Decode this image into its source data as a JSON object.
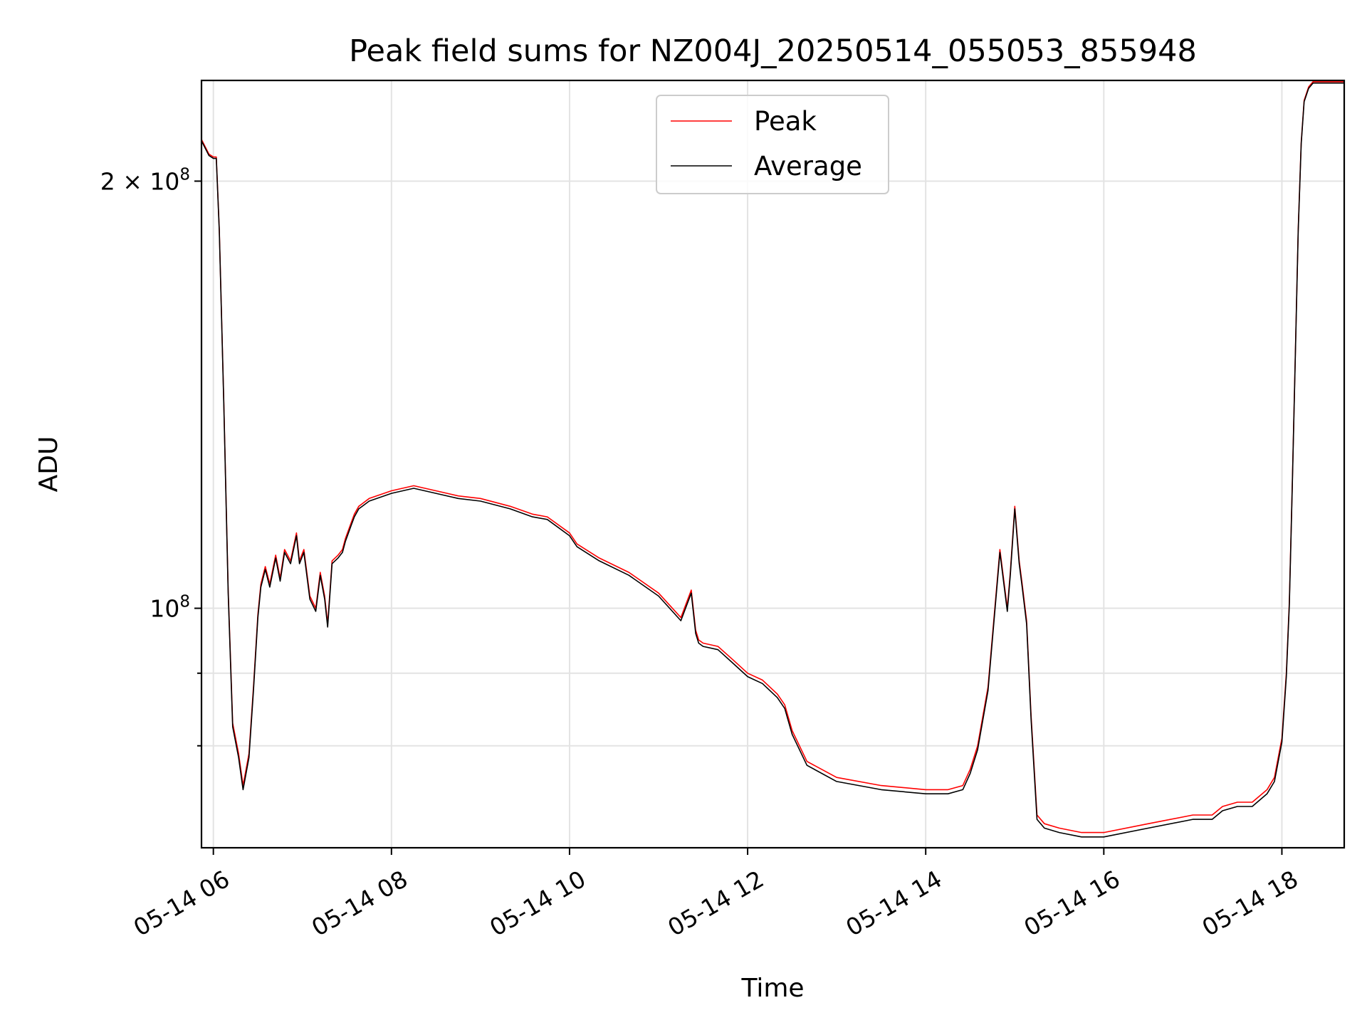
{
  "chart_data": {
    "type": "line",
    "title": "Peak field sums for NZ004J_20250514_055053_855948",
    "xlabel": "Time",
    "ylabel": "ADU",
    "y_scale": "log",
    "xlim": [
      "2025-05-14 05:52",
      "2025-05-14 18:42"
    ],
    "ylim": [
      67800000,
      235500000
    ],
    "grid": true,
    "legend_position": "upper center",
    "x_ticks": [
      {
        "value": "2025-05-14 06:00",
        "label": "05-14 06"
      },
      {
        "value": "2025-05-14 08:00",
        "label": "05-14 08"
      },
      {
        "value": "2025-05-14 10:00",
        "label": "05-14 10"
      },
      {
        "value": "2025-05-14 12:00",
        "label": "05-14 12"
      },
      {
        "value": "2025-05-14 14:00",
        "label": "05-14 14"
      },
      {
        "value": "2025-05-14 16:00",
        "label": "05-14 16"
      },
      {
        "value": "2025-05-14 18:00",
        "label": "05-14 18"
      }
    ],
    "y_ticks_major": [
      {
        "value": 100000000,
        "base": "10",
        "exp": "8",
        "prefix": ""
      },
      {
        "value": 200000000,
        "base": "10",
        "exp": "8",
        "prefix": "2 × "
      }
    ],
    "y_ticks_minor": [
      80000000,
      90000000
    ],
    "series": [
      {
        "name": "Peak",
        "color": "#ff0000",
        "x": [
          "2025-05-14 05:52",
          "2025-05-14 05:57",
          "2025-05-14 06:00",
          "2025-05-14 06:02",
          "2025-05-14 06:04",
          "2025-05-14 06:07",
          "2025-05-14 06:10",
          "2025-05-14 06:13",
          "2025-05-14 06:17",
          "2025-05-14 06:20",
          "2025-05-14 06:24",
          "2025-05-14 06:27",
          "2025-05-14 06:30",
          "2025-05-14 06:32",
          "2025-05-14 06:35",
          "2025-05-14 06:38",
          "2025-05-14 06:42",
          "2025-05-14 06:45",
          "2025-05-14 06:48",
          "2025-05-14 06:52",
          "2025-05-14 06:56",
          "2025-05-14 06:58",
          "2025-05-14 07:01",
          "2025-05-14 07:05",
          "2025-05-14 07:09",
          "2025-05-14 07:12",
          "2025-05-14 07:15",
          "2025-05-14 07:17",
          "2025-05-14 07:20",
          "2025-05-14 07:24",
          "2025-05-14 07:27",
          "2025-05-14 07:29",
          "2025-05-14 07:31",
          "2025-05-14 07:33",
          "2025-05-14 07:35",
          "2025-05-14 07:38",
          "2025-05-14 07:45",
          "2025-05-14 08:00",
          "2025-05-14 08:15",
          "2025-05-14 08:30",
          "2025-05-14 08:45",
          "2025-05-14 09:00",
          "2025-05-14 09:20",
          "2025-05-14 09:35",
          "2025-05-14 09:45",
          "2025-05-14 10:00",
          "2025-05-14 10:05",
          "2025-05-14 10:20",
          "2025-05-14 10:40",
          "2025-05-14 11:00",
          "2025-05-14 11:15",
          "2025-05-14 11:22",
          "2025-05-14 11:25",
          "2025-05-14 11:27",
          "2025-05-14 11:30",
          "2025-05-14 11:40",
          "2025-05-14 11:50",
          "2025-05-14 12:00",
          "2025-05-14 12:10",
          "2025-05-14 12:20",
          "2025-05-14 12:25",
          "2025-05-14 12:30",
          "2025-05-14 12:40",
          "2025-05-14 13:00",
          "2025-05-14 13:30",
          "2025-05-14 14:00",
          "2025-05-14 14:15",
          "2025-05-14 14:25",
          "2025-05-14 14:30",
          "2025-05-14 14:35",
          "2025-05-14 14:42",
          "2025-05-14 14:50",
          "2025-05-14 14:55",
          "2025-05-14 14:57",
          "2025-05-14 15:00",
          "2025-05-14 15:03",
          "2025-05-14 15:05",
          "2025-05-14 15:08",
          "2025-05-14 15:11",
          "2025-05-14 15:15",
          "2025-05-14 15:20",
          "2025-05-14 15:30",
          "2025-05-14 15:45",
          "2025-05-14 16:00",
          "2025-05-14 16:30",
          "2025-05-14 17:00",
          "2025-05-14 17:13",
          "2025-05-14 17:20",
          "2025-05-14 17:30",
          "2025-05-14 17:40",
          "2025-05-14 17:50",
          "2025-05-14 17:55",
          "2025-05-14 18:00",
          "2025-05-14 18:03",
          "2025-05-14 18:05",
          "2025-05-14 18:07",
          "2025-05-14 18:09",
          "2025-05-14 18:11",
          "2025-05-14 18:13",
          "2025-05-14 18:15",
          "2025-05-14 18:18",
          "2025-05-14 18:21",
          "2025-05-14 18:24",
          "2025-05-14 18:30",
          "2025-05-14 18:42"
        ],
        "values": [
          214000000,
          209000000,
          208000000,
          208000000,
          185000000,
          140000000,
          103000000,
          83000000,
          79000000,
          75000000,
          79000000,
          88000000,
          99000000,
          104000000,
          107000000,
          104000000,
          109000000,
          105000000,
          110000000,
          108000000,
          113000000,
          108000000,
          110000000,
          102000000,
          100000000,
          106000000,
          102000000,
          97500000,
          108000000,
          109000000,
          110000000,
          112000000,
          113500000,
          115000000,
          116500000,
          118000000,
          119500000,
          121000000,
          122000000,
          121000000,
          120000000,
          119500000,
          118000000,
          116500000,
          116000000,
          113000000,
          111000000,
          108500000,
          106000000,
          102500000,
          98500000,
          103000000,
          96500000,
          95000000,
          94500000,
          94000000,
          92000000,
          90000000,
          89000000,
          87000000,
          85500000,
          82000000,
          78000000,
          76000000,
          75000000,
          74500000,
          74500000,
          75000000,
          77000000,
          80000000,
          88000000,
          110000000,
          100000000,
          106000000,
          118000000,
          108000000,
          104000000,
          98000000,
          84000000,
          71500000,
          70500000,
          70000000,
          69500000,
          69500000,
          70500000,
          71500000,
          71500000,
          72500000,
          73000000,
          73000000,
          74500000,
          76000000,
          81000000,
          90000000,
          101000000,
          122000000,
          150000000,
          185000000,
          213000000,
          228000000,
          233000000,
          235000000,
          235000000,
          235000000,
          235000000
        ]
      },
      {
        "name": "Average",
        "color": "#000000",
        "x": [
          "2025-05-14 05:52",
          "2025-05-14 05:57",
          "2025-05-14 06:00",
          "2025-05-14 06:02",
          "2025-05-14 06:04",
          "2025-05-14 06:07",
          "2025-05-14 06:10",
          "2025-05-14 06:13",
          "2025-05-14 06:17",
          "2025-05-14 06:20",
          "2025-05-14 06:24",
          "2025-05-14 06:27",
          "2025-05-14 06:30",
          "2025-05-14 06:32",
          "2025-05-14 06:35",
          "2025-05-14 06:38",
          "2025-05-14 06:42",
          "2025-05-14 06:45",
          "2025-05-14 06:48",
          "2025-05-14 06:52",
          "2025-05-14 06:56",
          "2025-05-14 06:58",
          "2025-05-14 07:01",
          "2025-05-14 07:05",
          "2025-05-14 07:09",
          "2025-05-14 07:12",
          "2025-05-14 07:15",
          "2025-05-14 07:17",
          "2025-05-14 07:20",
          "2025-05-14 07:24",
          "2025-05-14 07:27",
          "2025-05-14 07:29",
          "2025-05-14 07:31",
          "2025-05-14 07:33",
          "2025-05-14 07:35",
          "2025-05-14 07:38",
          "2025-05-14 07:45",
          "2025-05-14 08:00",
          "2025-05-14 08:15",
          "2025-05-14 08:30",
          "2025-05-14 08:45",
          "2025-05-14 09:00",
          "2025-05-14 09:20",
          "2025-05-14 09:35",
          "2025-05-14 09:45",
          "2025-05-14 10:00",
          "2025-05-14 10:05",
          "2025-05-14 10:20",
          "2025-05-14 10:40",
          "2025-05-14 11:00",
          "2025-05-14 11:15",
          "2025-05-14 11:22",
          "2025-05-14 11:25",
          "2025-05-14 11:27",
          "2025-05-14 11:30",
          "2025-05-14 11:40",
          "2025-05-14 11:50",
          "2025-05-14 12:00",
          "2025-05-14 12:10",
          "2025-05-14 12:20",
          "2025-05-14 12:25",
          "2025-05-14 12:30",
          "2025-05-14 12:40",
          "2025-05-14 13:00",
          "2025-05-14 13:30",
          "2025-05-14 14:00",
          "2025-05-14 14:15",
          "2025-05-14 14:25",
          "2025-05-14 14:30",
          "2025-05-14 14:35",
          "2025-05-14 14:42",
          "2025-05-14 14:50",
          "2025-05-14 14:55",
          "2025-05-14 14:57",
          "2025-05-14 15:00",
          "2025-05-14 15:03",
          "2025-05-14 15:05",
          "2025-05-14 15:08",
          "2025-05-14 15:11",
          "2025-05-14 15:15",
          "2025-05-14 15:20",
          "2025-05-14 15:30",
          "2025-05-14 15:45",
          "2025-05-14 16:00",
          "2025-05-14 16:30",
          "2025-05-14 17:00",
          "2025-05-14 17:13",
          "2025-05-14 17:20",
          "2025-05-14 17:30",
          "2025-05-14 17:40",
          "2025-05-14 17:50",
          "2025-05-14 17:55",
          "2025-05-14 18:00",
          "2025-05-14 18:03",
          "2025-05-14 18:05",
          "2025-05-14 18:07",
          "2025-05-14 18:09",
          "2025-05-14 18:11",
          "2025-05-14 18:13",
          "2025-05-14 18:15",
          "2025-05-14 18:18",
          "2025-05-14 18:21",
          "2025-05-14 18:24",
          "2025-05-14 18:30",
          "2025-05-14 18:42"
        ],
        "values": [
          213500000,
          208500000,
          207500000,
          207500000,
          184500000,
          139500000,
          102500000,
          82500000,
          78500000,
          74500000,
          78500000,
          87500000,
          98500000,
          103500000,
          106500000,
          103500000,
          108500000,
          104500000,
          109500000,
          107500000,
          112500000,
          107500000,
          109500000,
          101500000,
          99500000,
          105500000,
          101500000,
          97000000,
          107500000,
          108500000,
          109500000,
          111500000,
          113000000,
          114500000,
          116000000,
          117500000,
          119000000,
          120500000,
          121500000,
          120500000,
          119500000,
          119000000,
          117500000,
          116000000,
          115500000,
          112500000,
          110500000,
          108000000,
          105500000,
          102000000,
          98000000,
          102500000,
          96000000,
          94500000,
          94000000,
          93500000,
          91500000,
          89500000,
          88500000,
          86500000,
          85000000,
          81500000,
          77500000,
          75500000,
          74500000,
          74000000,
          74000000,
          74500000,
          76500000,
          79500000,
          87500000,
          109500000,
          99500000,
          105500000,
          117500000,
          107500000,
          103500000,
          97500000,
          83500000,
          71000000,
          70000000,
          69500000,
          69000000,
          69000000,
          70000000,
          71000000,
          71000000,
          72000000,
          72500000,
          72500000,
          74000000,
          75500000,
          80500000,
          89500000,
          100500000,
          121500000,
          149500000,
          184500000,
          212500000,
          227500000,
          232500000,
          234500000,
          234500000,
          234500000,
          234500000
        ]
      }
    ]
  }
}
